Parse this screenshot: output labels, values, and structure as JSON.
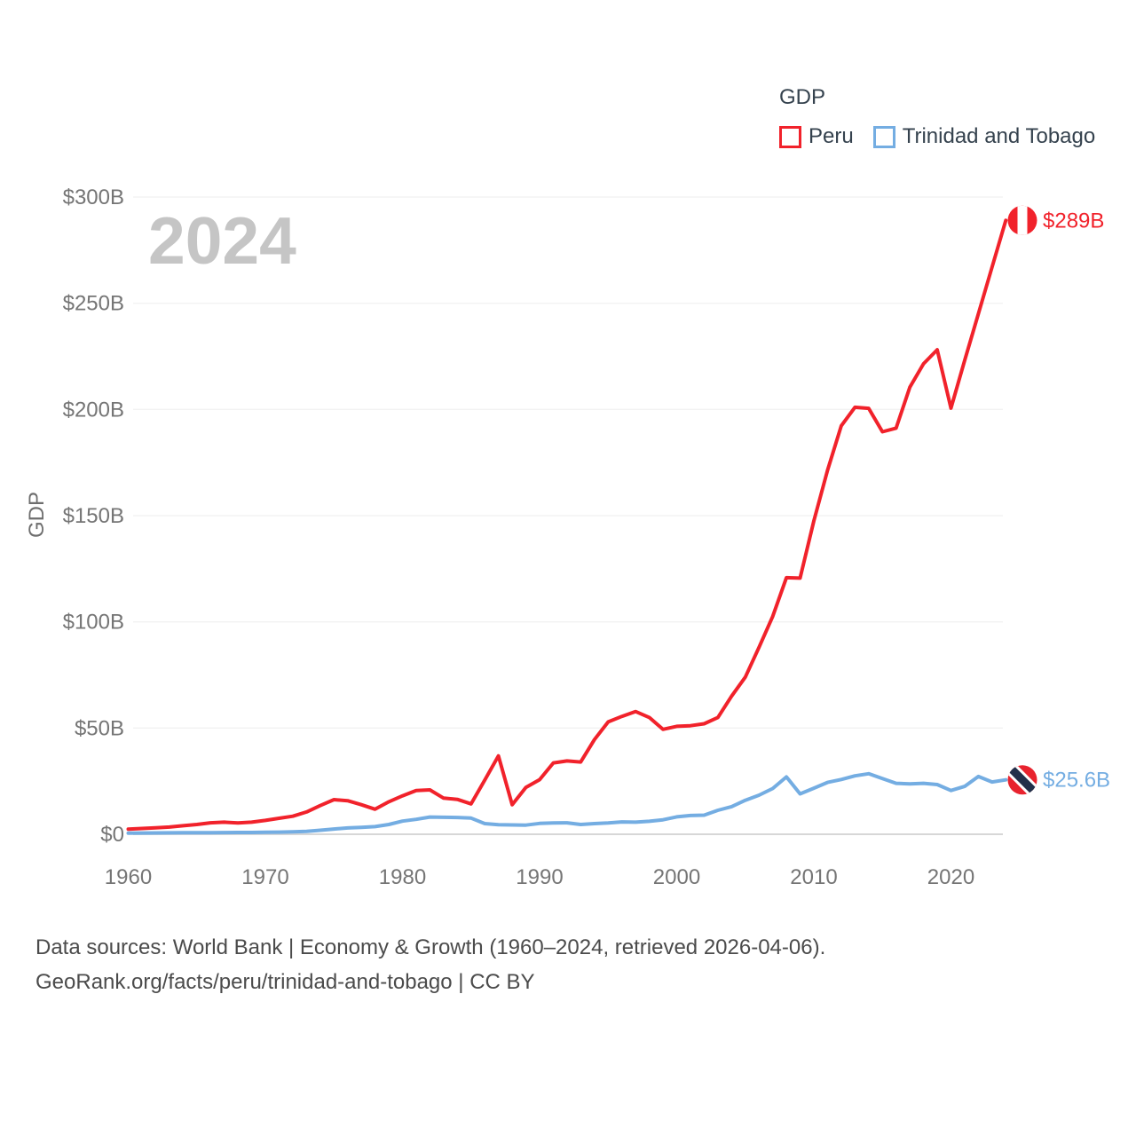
{
  "watermark": "2024",
  "legend": {
    "title": "GDP",
    "items": [
      {
        "label": "Peru",
        "color": "#f1222b"
      },
      {
        "label": "Trinidad and Tobago",
        "color": "#74ade2"
      }
    ]
  },
  "footer": {
    "line1": "Data sources: World Bank | Economy & Growth (1960–2024, retrieved 2026-04-06).",
    "line2": "GeoRank.org/facts/peru/trinidad-and-tobago | CC BY"
  },
  "chart_data": {
    "type": "line",
    "title": "GDP",
    "xlabel": "",
    "ylabel": "GDP",
    "xlim": [
      1960,
      2024
    ],
    "ylim": [
      0,
      300
    ],
    "grid": true,
    "legend_position": "top-right",
    "x_ticks": [
      1960,
      1970,
      1980,
      1990,
      2000,
      2010,
      2020
    ],
    "y_ticks": [
      {
        "label": "$0",
        "value": 0
      },
      {
        "label": "$50B",
        "value": 50
      },
      {
        "label": "$100B",
        "value": 100
      },
      {
        "label": "$150B",
        "value": 150
      },
      {
        "label": "$200B",
        "value": 200
      },
      {
        "label": "$250B",
        "value": 250
      },
      {
        "label": "$300B",
        "value": 300
      }
    ],
    "x": [
      1960,
      1961,
      1962,
      1963,
      1964,
      1965,
      1966,
      1967,
      1968,
      1969,
      1970,
      1971,
      1972,
      1973,
      1974,
      1975,
      1976,
      1977,
      1978,
      1979,
      1980,
      1981,
      1982,
      1983,
      1984,
      1985,
      1986,
      1987,
      1988,
      1989,
      1990,
      1991,
      1992,
      1993,
      1994,
      1995,
      1996,
      1997,
      1998,
      1999,
      2000,
      2001,
      2002,
      2003,
      2004,
      2005,
      2006,
      2007,
      2008,
      2009,
      2010,
      2011,
      2012,
      2013,
      2014,
      2015,
      2016,
      2017,
      2018,
      2019,
      2020,
      2021,
      2022,
      2023,
      2024
    ],
    "series": [
      {
        "name": "Peru",
        "color": "#f1222b",
        "end_label": "$289B",
        "end_value": 289,
        "marker": {
          "type": "peru-flag",
          "red": "#f1222b",
          "white": "#ffffff"
        },
        "values": [
          2.4,
          2.7,
          3.0,
          3.4,
          4.0,
          4.6,
          5.4,
          5.7,
          5.3,
          5.7,
          6.5,
          7.5,
          8.5,
          10.5,
          13.5,
          16.3,
          15.8,
          13.9,
          11.8,
          15.3,
          18.1,
          20.6,
          20.9,
          17.0,
          16.4,
          14.3,
          25.5,
          36.9,
          13.9,
          22.0,
          25.7,
          33.6,
          34.5,
          34.0,
          44.6,
          52.9,
          55.5,
          57.8,
          55.0,
          49.4,
          50.8,
          51.1,
          52.0,
          55.0,
          65.0,
          74.0,
          88.0,
          102.5,
          120.8,
          120.6,
          147.5,
          171.3,
          192.3,
          201.0,
          200.5,
          189.5,
          191.2,
          210.5,
          221.5,
          228.1,
          200.6,
          223.0,
          245.0,
          267.0,
          289.0
        ]
      },
      {
        "name": "Trinidad and Tobago",
        "color": "#74ade2",
        "end_label": "$25.6B",
        "end_value": 25.6,
        "marker": {
          "type": "trinidad-and-tobago-flag",
          "red": "#e8232e",
          "black": "#22304a",
          "white": "#ffffff"
        },
        "values": [
          0.54,
          0.6,
          0.64,
          0.68,
          0.71,
          0.74,
          0.76,
          0.79,
          0.82,
          0.85,
          0.9,
          1.0,
          1.15,
          1.35,
          1.9,
          2.45,
          2.95,
          3.2,
          3.6,
          4.6,
          6.2,
          7.0,
          8.1,
          8.0,
          7.9,
          7.6,
          5.0,
          4.5,
          4.4,
          4.3,
          5.1,
          5.3,
          5.4,
          4.6,
          5.0,
          5.3,
          5.8,
          5.7,
          6.1,
          6.8,
          8.2,
          8.8,
          9.0,
          11.3,
          13.0,
          16.0,
          18.4,
          21.5,
          27.0,
          19.0,
          21.7,
          24.4,
          25.8,
          27.5,
          28.5,
          26.2,
          24.0,
          23.7,
          24.0,
          23.4,
          20.6,
          22.5,
          27.2,
          24.6,
          25.6
        ]
      }
    ]
  }
}
